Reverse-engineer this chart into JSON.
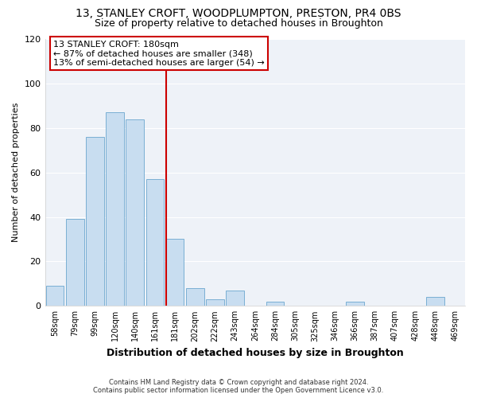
{
  "title": "13, STANLEY CROFT, WOODPLUMPTON, PRESTON, PR4 0BS",
  "subtitle": "Size of property relative to detached houses in Broughton",
  "xlabel": "Distribution of detached houses by size in Broughton",
  "ylabel": "Number of detached properties",
  "bar_labels": [
    "58sqm",
    "79sqm",
    "99sqm",
    "120sqm",
    "140sqm",
    "161sqm",
    "181sqm",
    "202sqm",
    "222sqm",
    "243sqm",
    "264sqm",
    "284sqm",
    "305sqm",
    "325sqm",
    "346sqm",
    "366sqm",
    "387sqm",
    "407sqm",
    "428sqm",
    "448sqm",
    "469sqm"
  ],
  "bar_values": [
    9,
    39,
    76,
    87,
    84,
    57,
    30,
    8,
    3,
    7,
    0,
    2,
    0,
    0,
    0,
    2,
    0,
    0,
    0,
    4,
    0
  ],
  "bar_color": "#c8ddf0",
  "bar_edge_color": "#7aafd4",
  "vline_color": "#cc0000",
  "annotation_title": "13 STANLEY CROFT: 180sqm",
  "annotation_line1": "← 87% of detached houses are smaller (348)",
  "annotation_line2": "13% of semi-detached houses are larger (54) →",
  "annotation_box_color": "white",
  "annotation_box_edge": "#cc0000",
  "ylim": [
    0,
    120
  ],
  "yticks": [
    0,
    20,
    40,
    60,
    80,
    100,
    120
  ],
  "footer1": "Contains HM Land Registry data © Crown copyright and database right 2024.",
  "footer2": "Contains public sector information licensed under the Open Government Licence v3.0.",
  "fig_background_color": "#ffffff",
  "plot_background_color": "#eef2f8",
  "grid_color": "#ffffff",
  "title_fontsize": 10,
  "subtitle_fontsize": 9,
  "vline_bar_index": 6
}
